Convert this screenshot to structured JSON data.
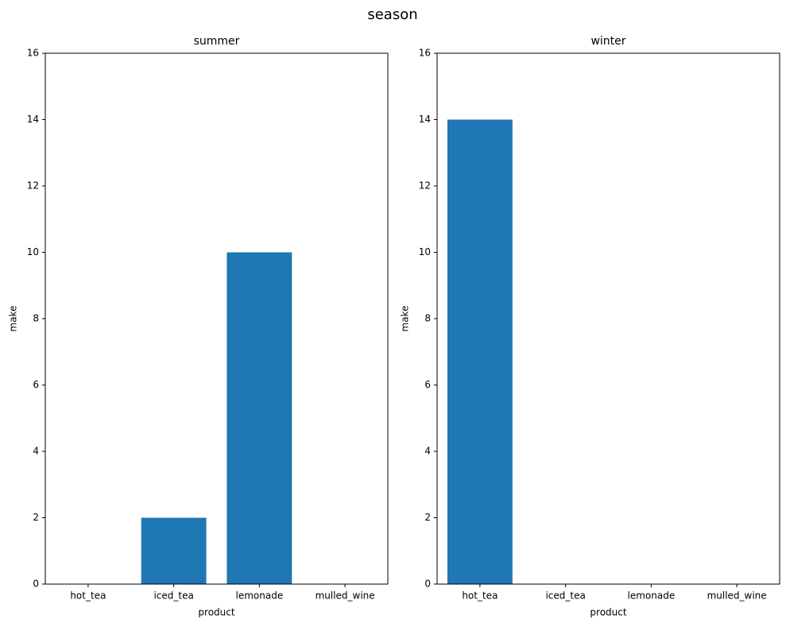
{
  "title": "season",
  "chart_data": [
    {
      "type": "bar",
      "title": "summer",
      "x_label": "product",
      "y_label": "make",
      "categories": [
        "hot_tea",
        "iced_tea",
        "lemonade",
        "mulled_wine"
      ],
      "values": [
        0,
        2,
        10,
        0
      ],
      "color": "#1f77b4",
      "ylim": [
        0,
        16
      ],
      "yticks": [
        0,
        2,
        4,
        6,
        8,
        10,
        12,
        14,
        16
      ]
    },
    {
      "type": "bar",
      "title": "winter",
      "x_label": "product",
      "y_label": "make",
      "categories": [
        "hot_tea",
        "iced_tea",
        "lemonade",
        "mulled_wine"
      ],
      "values": [
        14,
        0,
        0,
        0
      ],
      "color": "#1f77b4",
      "ylim": [
        0,
        16
      ],
      "yticks": [
        0,
        2,
        4,
        6,
        8,
        10,
        12,
        14,
        16
      ]
    }
  ]
}
